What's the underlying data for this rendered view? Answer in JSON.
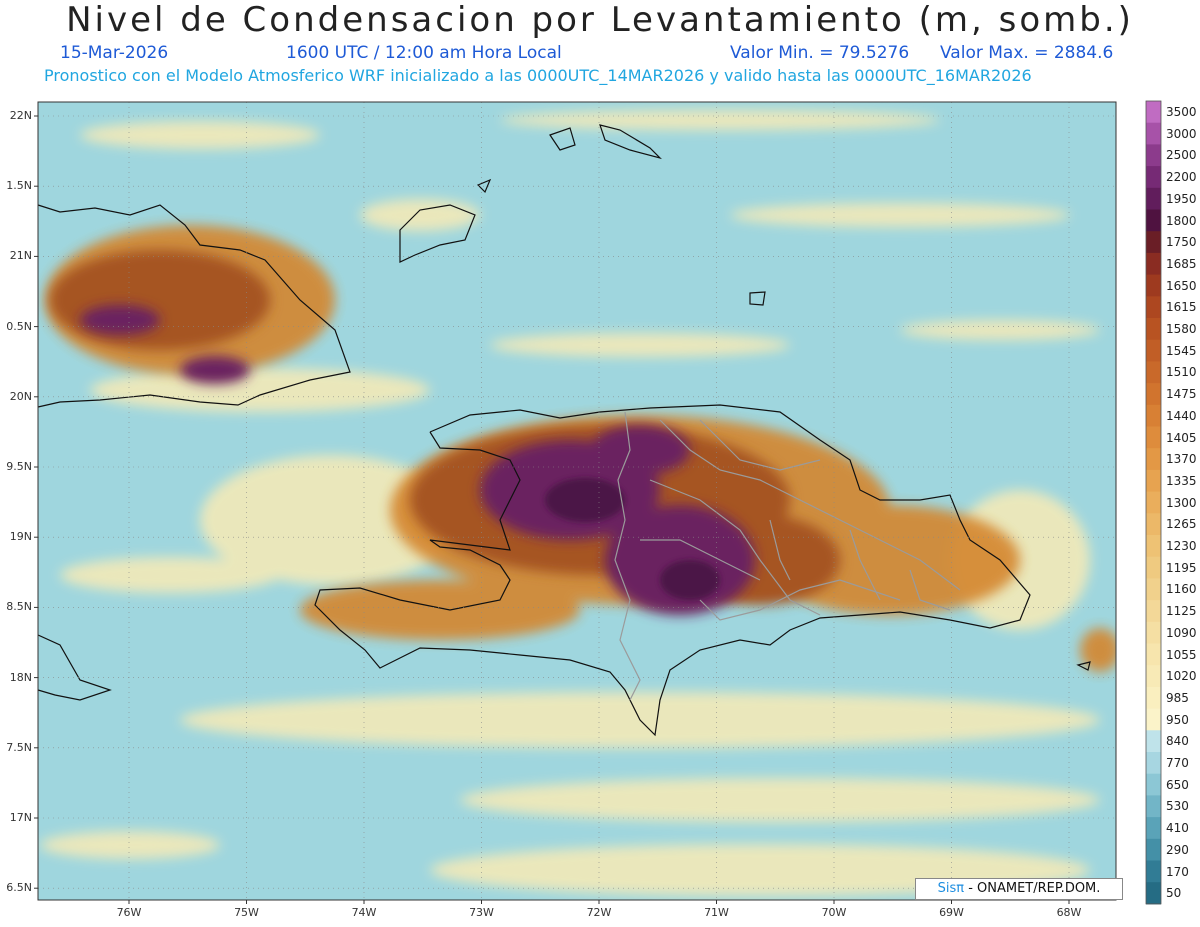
{
  "header": {
    "title": "Nivel de Condensacion por Levantamiento (m, somb.)",
    "date": "15-Mar-2026",
    "time": "1600 UTC / 12:00 am Hora Local",
    "min": "Valor Min. = 79.5276",
    "max": "Valor Max. = 2884.6",
    "model_line": "Pronostico con el Modelo Atmosferico WRF inicializado a las 0000UTC_14MAR2026 y valido hasta las  0000UTC_16MAR2026"
  },
  "axes": {
    "lat_labels": [
      "22N",
      "1.5N",
      "21N",
      "0.5N",
      "20N",
      "9.5N",
      "19N",
      "8.5N",
      "18N",
      "7.5N",
      "17N",
      "6.5N"
    ],
    "lon_labels": [
      "76W",
      "75W",
      "74W",
      "73W",
      "72W",
      "71W",
      "70W",
      "69W",
      "68W"
    ]
  },
  "colorbar": {
    "labels": [
      "3500",
      "3000",
      "2500",
      "2200",
      "1950",
      "1800",
      "1750",
      "1685",
      "1650",
      "1615",
      "1580",
      "1545",
      "1510",
      "1475",
      "1440",
      "1405",
      "1370",
      "1335",
      "1300",
      "1265",
      "1230",
      "1195",
      "1160",
      "1125",
      "1090",
      "1055",
      "1020",
      "985",
      "950",
      "840",
      "770",
      "650",
      "530",
      "410",
      "290",
      "170",
      "50"
    ],
    "colors": [
      "#c06cc2",
      "#a752a8",
      "#8c3b8c",
      "#762a75",
      "#611d5c",
      "#4f1240",
      "#6a1e26",
      "#8a2c22",
      "#9e3a1f",
      "#ad4720",
      "#b85322",
      "#c15e26",
      "#c9692a",
      "#d1742e",
      "#d88034",
      "#de8c3c",
      "#e39845",
      "#e7a350",
      "#eaae5c",
      "#ecb868",
      "#eec274",
      "#efca80",
      "#f1d18c",
      "#f3d898",
      "#f5dfa3",
      "#f7e5ad",
      "#f8eab6",
      "#faefbf",
      "#fbf3c9",
      "#bfe3ea",
      "#a7d6e1",
      "#8cc7d5",
      "#72b5c7",
      "#5aa3b8",
      "#4490a7",
      "#317c95",
      "#256c84"
    ]
  },
  "map": {
    "colors": {
      "sea": "#9fd6de",
      "light": "#f8ebb6",
      "orange": "#d4862f",
      "brown": "#a65422",
      "purple": "#6b2461",
      "deep": "#4c1747"
    }
  },
  "credit": {
    "brand": "Sisπ",
    "text": " - ONAMET/REP.DOM."
  }
}
